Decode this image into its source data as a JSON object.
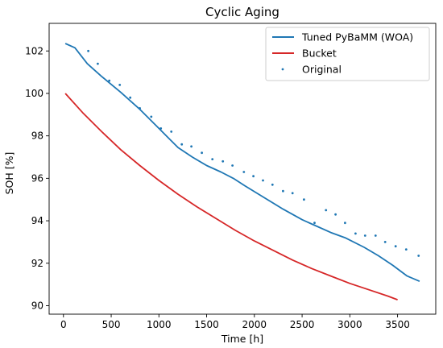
{
  "chart_data": {
    "type": "line",
    "title": "Cyclic Aging",
    "xlabel": "Time [h]",
    "ylabel": "SOH [%]",
    "xlim": [
      -150,
      3900
    ],
    "ylim": [
      89.6,
      103.3
    ],
    "xticks": [
      0,
      500,
      1000,
      1500,
      2000,
      2500,
      3000,
      3500
    ],
    "yticks": [
      90,
      92,
      94,
      96,
      98,
      100,
      102
    ],
    "grid": false,
    "legend_position": "top-right",
    "series": [
      {
        "name": "Tuned PyBaMM (WOA)",
        "style": "line",
        "color": "#1f77b4",
        "x": [
          20,
          120,
          250,
          400,
          600,
          800,
          1000,
          1100,
          1200,
          1350,
          1500,
          1650,
          1780,
          1900,
          2100,
          2300,
          2500,
          2600,
          2800,
          2950,
          3150,
          3300,
          3450,
          3600,
          3730
        ],
        "y": [
          102.35,
          102.15,
          101.4,
          100.8,
          100.05,
          99.25,
          98.35,
          97.9,
          97.45,
          97.0,
          96.6,
          96.3,
          96.0,
          95.65,
          95.1,
          94.55,
          94.05,
          93.85,
          93.45,
          93.2,
          92.75,
          92.35,
          91.9,
          91.4,
          91.15
        ]
      },
      {
        "name": "Bucket",
        "style": "line",
        "color": "#d62728",
        "x": [
          20,
          200,
          400,
          600,
          800,
          1000,
          1200,
          1400,
          1600,
          1800,
          2000,
          2200,
          2400,
          2600,
          2800,
          3000,
          3200,
          3400,
          3500
        ],
        "y": [
          100.0,
          99.1,
          98.2,
          97.35,
          96.6,
          95.9,
          95.25,
          94.65,
          94.1,
          93.55,
          93.05,
          92.6,
          92.15,
          91.75,
          91.4,
          91.05,
          90.75,
          90.45,
          90.28
        ]
      },
      {
        "name": "Original",
        "style": "scatter",
        "color": "#1f77b4",
        "x": [
          260,
          360,
          480,
          590,
          700,
          800,
          920,
          1020,
          1130,
          1240,
          1340,
          1450,
          1560,
          1670,
          1770,
          1890,
          1990,
          2090,
          2190,
          2300,
          2400,
          2520,
          2630,
          2750,
          2850,
          2950,
          3060,
          3160,
          3270,
          3370,
          3480,
          3590,
          3720
        ],
        "y": [
          102.0,
          101.4,
          100.6,
          100.4,
          99.8,
          99.3,
          98.9,
          98.35,
          98.2,
          97.6,
          97.5,
          97.2,
          96.9,
          96.8,
          96.6,
          96.3,
          96.1,
          95.9,
          95.7,
          95.4,
          95.3,
          95.0,
          93.9,
          94.5,
          94.3,
          93.9,
          93.4,
          93.3,
          93.3,
          93.0,
          92.8,
          92.65,
          92.35
        ]
      }
    ]
  }
}
